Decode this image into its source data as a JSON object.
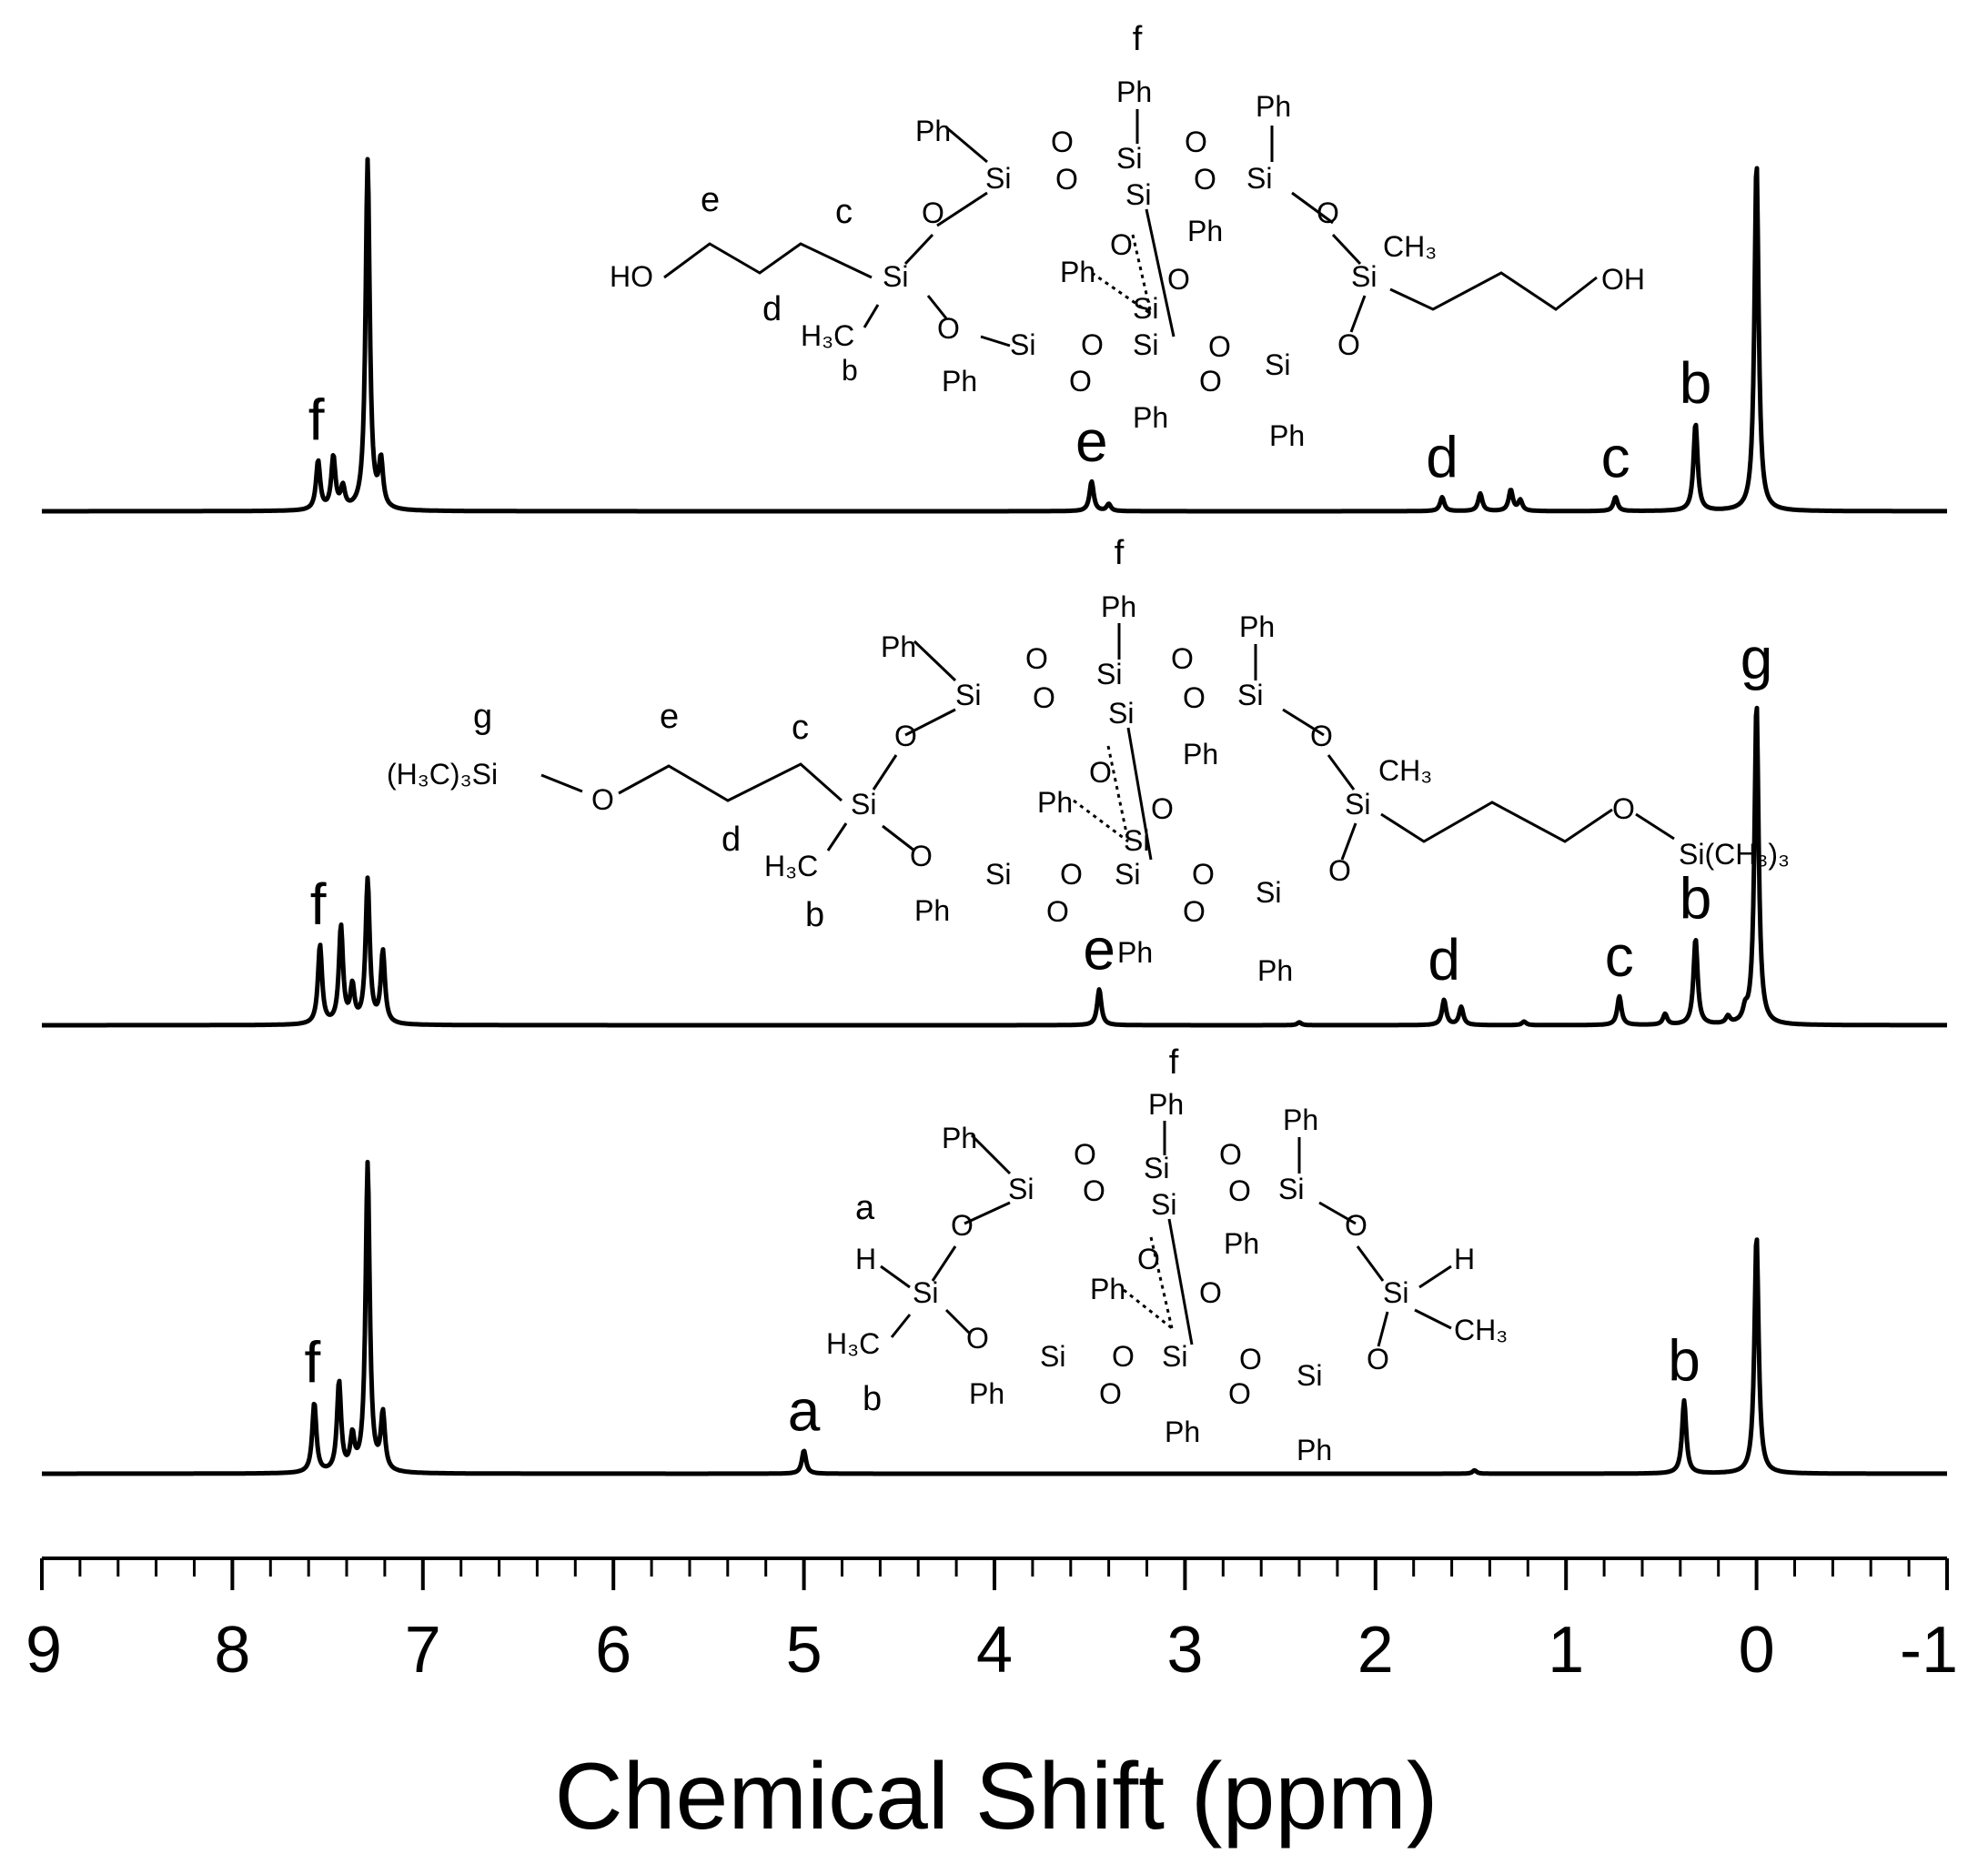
{
  "chart_data": {
    "type": "line",
    "title": "",
    "xlabel": "Chemical Shift (ppm)",
    "ylabel": "",
    "xlim": [
      9,
      -1
    ],
    "x_reversed": true,
    "x_ticks": [
      "9",
      "8",
      "7",
      "6",
      "5",
      "4",
      "3",
      "2",
      "1",
      "0",
      "-1"
    ],
    "legend": "none",
    "grid": false,
    "series": [
      {
        "peaks": [
          {
            "ppm": 7.55,
            "height": 0.14
          },
          {
            "ppm": 7.47,
            "height": 0.15
          },
          {
            "ppm": 7.42,
            "height": 0.06
          },
          {
            "ppm": 7.29,
            "height": 1.0
          },
          {
            "ppm": 7.22,
            "height": 0.13
          },
          {
            "ppm": 3.49,
            "height": 0.085
          },
          {
            "ppm": 3.4,
            "height": 0.02
          },
          {
            "ppm": 1.65,
            "height": 0.04
          },
          {
            "ppm": 1.45,
            "height": 0.05
          },
          {
            "ppm": 1.29,
            "height": 0.06
          },
          {
            "ppm": 1.24,
            "height": 0.03
          },
          {
            "ppm": 0.74,
            "height": 0.04
          },
          {
            "ppm": 0.32,
            "height": 0.25
          },
          {
            "ppm": 0.0,
            "height": 1.0
          }
        ],
        "labels": [
          {
            "text": "f",
            "ppm": 7.55
          },
          {
            "text": "e",
            "ppm": 3.49
          },
          {
            "text": "d",
            "ppm": 1.65
          },
          {
            "text": "c",
            "ppm": 0.74
          },
          {
            "text": "b",
            "ppm": 0.32
          }
        ]
      },
      {
        "peaks": [
          {
            "ppm": 7.54,
            "height": 0.22
          },
          {
            "ppm": 7.43,
            "height": 0.27
          },
          {
            "ppm": 7.37,
            "height": 0.1
          },
          {
            "ppm": 7.29,
            "height": 0.4
          },
          {
            "ppm": 7.21,
            "height": 0.2
          },
          {
            "ppm": 3.45,
            "height": 0.1
          },
          {
            "ppm": 2.4,
            "height": 0.008
          },
          {
            "ppm": 1.64,
            "height": 0.07
          },
          {
            "ppm": 1.55,
            "height": 0.05
          },
          {
            "ppm": 1.22,
            "height": 0.01
          },
          {
            "ppm": 0.72,
            "height": 0.08
          },
          {
            "ppm": 0.48,
            "height": 0.03
          },
          {
            "ppm": 0.32,
            "height": 0.24
          },
          {
            "ppm": 0.15,
            "height": 0.02
          },
          {
            "ppm": 0.06,
            "height": 0.03
          },
          {
            "ppm": 0.0,
            "height": 0.9
          }
        ],
        "labels": [
          {
            "text": "f",
            "ppm": 7.54
          },
          {
            "text": "e",
            "ppm": 3.45
          },
          {
            "text": "d",
            "ppm": 1.64
          },
          {
            "text": "c",
            "ppm": 0.72
          },
          {
            "text": "b",
            "ppm": 0.32
          },
          {
            "text": "g",
            "ppm": 0.0
          }
        ]
      },
      {
        "peaks": [
          {
            "ppm": 7.57,
            "height": 0.21
          },
          {
            "ppm": 7.44,
            "height": 0.27
          },
          {
            "ppm": 7.37,
            "height": 0.1
          },
          {
            "ppm": 7.29,
            "height": 0.93
          },
          {
            "ppm": 7.21,
            "height": 0.17
          },
          {
            "ppm": 5.0,
            "height": 0.07
          },
          {
            "ppm": 1.48,
            "height": 0.01
          },
          {
            "ppm": 0.38,
            "height": 0.22
          },
          {
            "ppm": 0.0,
            "height": 0.72
          }
        ],
        "labels": [
          {
            "text": "f",
            "ppm": 7.57
          },
          {
            "text": "a",
            "ppm": 5.0
          },
          {
            "text": "b",
            "ppm": 0.38
          }
        ]
      }
    ]
  },
  "structures": {
    "top": {
      "f": "f",
      "Ph": "Ph",
      "Si": "Si",
      "O": "O",
      "OH": "OH",
      "HO": "HO",
      "CH3": "CH₃",
      "H3C": "H₃C",
      "e": "e",
      "c": "c",
      "d": "d",
      "b": "b"
    },
    "middle": {
      "f": "f",
      "g": "g",
      "Ph": "Ph",
      "Si": "Si",
      "O": "O",
      "CH3": "CH₃",
      "H3C": "H₃C",
      "TMS_left": "(H₃C)₃Si",
      "TMS_right": "Si(CH₃)₃",
      "e": "e",
      "c": "c",
      "d": "d",
      "b": "b"
    },
    "bottom": {
      "f": "f",
      "a": "a",
      "b": "b",
      "Ph": "Ph",
      "Si": "Si",
      "O": "O",
      "H": "H",
      "CH3": "CH₃",
      "H3C": "H₃C"
    }
  }
}
